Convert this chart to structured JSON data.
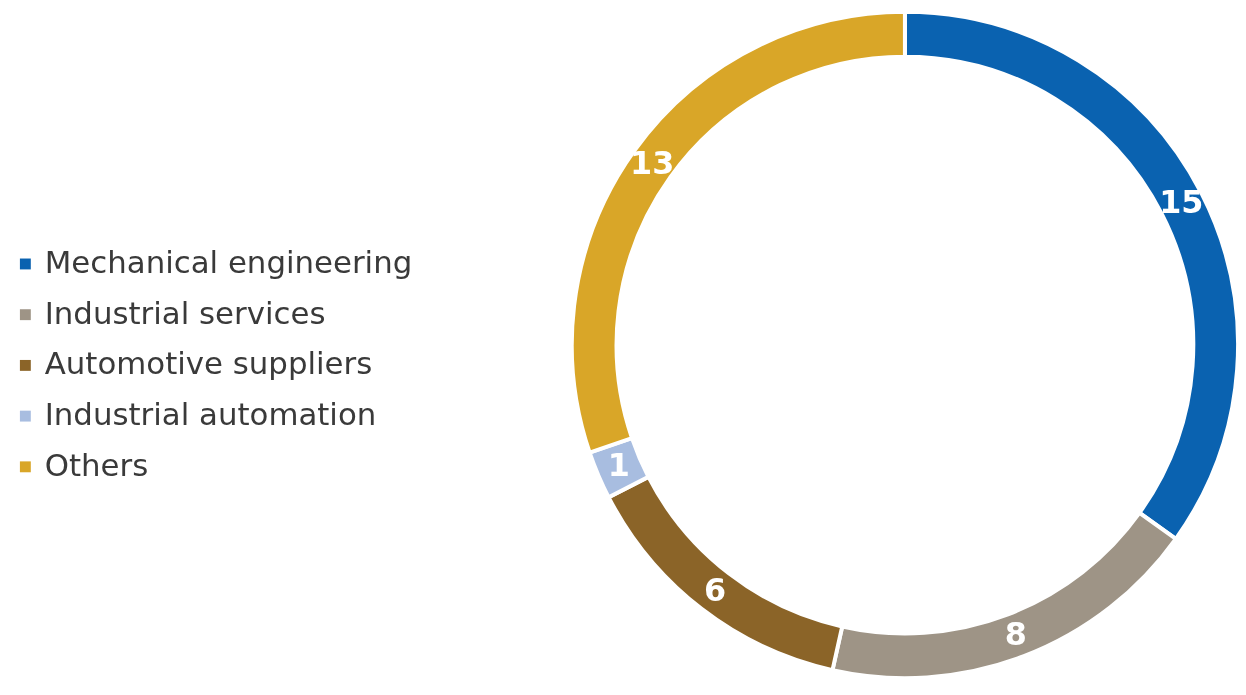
{
  "chart_data": {
    "type": "donut",
    "categories": [
      "Mechanical engineering",
      "Industrial services",
      "Automotive suppliers",
      "Industrial automation",
      "Others"
    ],
    "values": [
      15,
      8,
      6,
      1,
      13
    ],
    "colors": [
      "#0a62b0",
      "#9e9486",
      "#8b6428",
      "#a8bde0",
      "#d9a628"
    ],
    "data_labels": true,
    "legend": "left"
  }
}
